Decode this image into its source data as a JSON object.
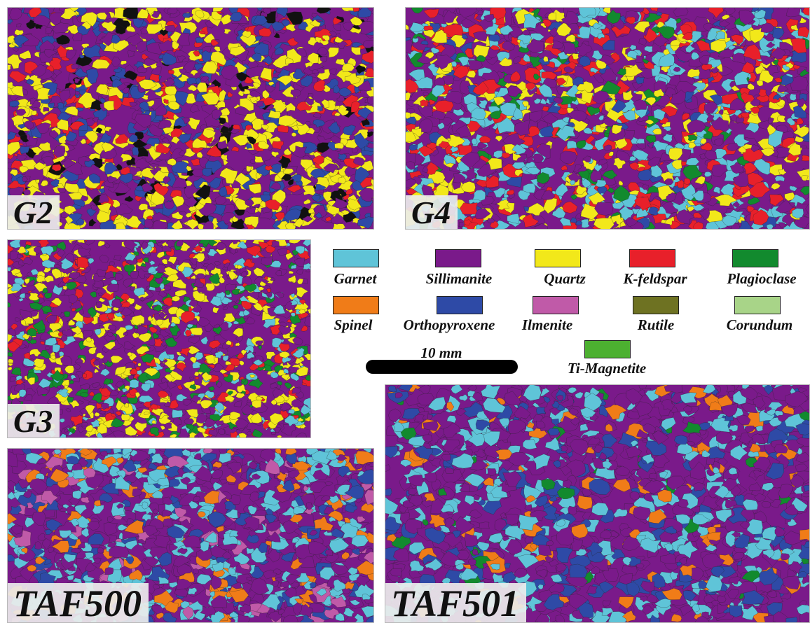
{
  "panels": {
    "g2": {
      "label": "G2",
      "mineral_mix": [
        "Sillimanite",
        "Quartz",
        "Orthopyroxene",
        "K-feldspar"
      ]
    },
    "g4": {
      "label": "G4",
      "mineral_mix": [
        "Garnet",
        "Sillimanite",
        "K-feldspar",
        "Quartz",
        "Plagioclase"
      ]
    },
    "g3": {
      "label": "G3",
      "mineral_mix": [
        "Garnet",
        "Sillimanite",
        "Quartz",
        "K-feldspar",
        "Plagioclase"
      ]
    },
    "taf500": {
      "label": "TAF500",
      "mineral_mix": [
        "Sillimanite",
        "Garnet",
        "Orthopyroxene",
        "Spinel",
        "Ilmenite"
      ]
    },
    "taf501": {
      "label": "TAF501",
      "mineral_mix": [
        "Sillimanite",
        "Garnet",
        "Orthopyroxene",
        "Spinel"
      ]
    }
  },
  "legend": {
    "items": [
      {
        "name": "Garnet",
        "color": "#5fc4d8"
      },
      {
        "name": "Sillimanite",
        "color": "#7a1a8a"
      },
      {
        "name": "Quartz",
        "color": "#f2e81a"
      },
      {
        "name": "K-feldspar",
        "color": "#e8202a"
      },
      {
        "name": "Plagioclase",
        "color": "#128a2e"
      },
      {
        "name": "Spinel",
        "color": "#f07c18"
      },
      {
        "name": "Orthopyroxene",
        "color": "#2e4aa6"
      },
      {
        "name": "Ilmenite",
        "color": "#c05aa8"
      },
      {
        "name": "Rutile",
        "color": "#6e7222"
      },
      {
        "name": "Corundum",
        "color": "#a8d488"
      },
      {
        "name": "Ti-Magnetite",
        "color": "#4cb030"
      }
    ],
    "scale_label": "10 mm"
  }
}
